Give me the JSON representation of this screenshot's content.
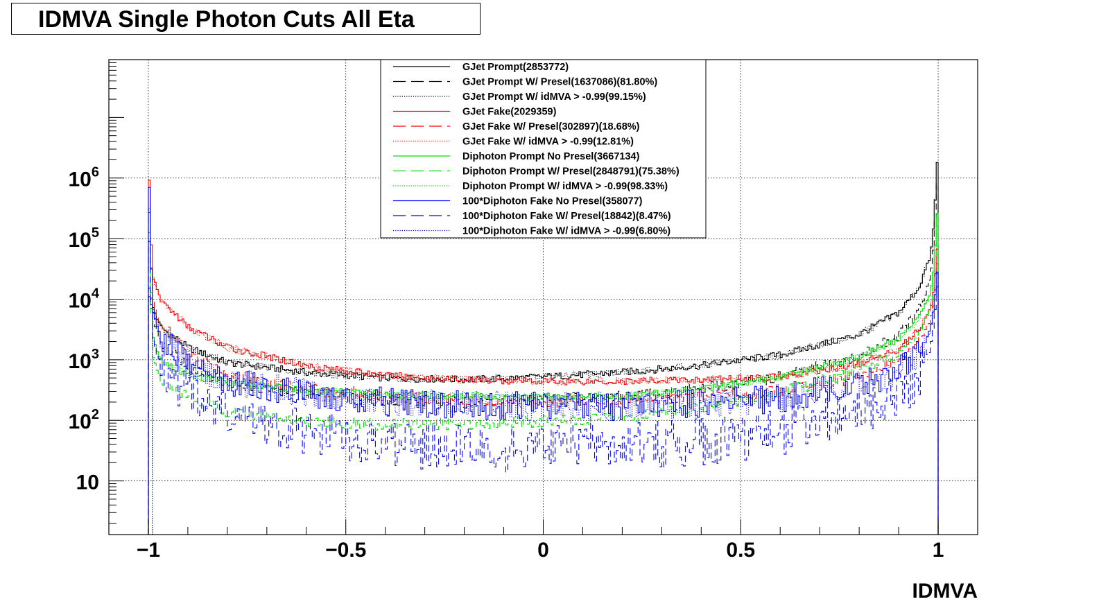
{
  "chart_data": {
    "type": "line",
    "title": "IDMVA Single Photon Cuts All Eta",
    "xlabel": "IDMVA",
    "ylabel": "",
    "xlim": [
      -1.1,
      1.1
    ],
    "ylim": [
      1.3,
      90000000
    ],
    "y_scale": "log",
    "grid": true,
    "legend_position": "top-center",
    "x_ticks": [
      {
        "value": -1,
        "label": "−1"
      },
      {
        "value": -0.5,
        "label": "−0.5"
      },
      {
        "value": 0,
        "label": "0"
      },
      {
        "value": 0.5,
        "label": "0.5"
      },
      {
        "value": 1,
        "label": "1"
      }
    ],
    "y_ticks": [
      {
        "value": 10,
        "base": "10",
        "exp": ""
      },
      {
        "value": 100,
        "base": "10",
        "exp": "2"
      },
      {
        "value": 1000,
        "base": "10",
        "exp": "3"
      },
      {
        "value": 10000,
        "base": "10",
        "exp": "4"
      },
      {
        "value": 100000,
        "base": "10",
        "exp": "5"
      },
      {
        "value": 1000000,
        "base": "10",
        "exp": "6"
      }
    ],
    "series": [
      {
        "name": "GJet Prompt(2853772)",
        "color": "#000000",
        "dash": "solid",
        "x": [
          -1.0,
          -0.99,
          -0.97,
          -0.9,
          -0.8,
          -0.6,
          -0.4,
          -0.2,
          0.0,
          0.2,
          0.4,
          0.6,
          0.8,
          0.9,
          0.95,
          0.98,
          0.99,
          1.0
        ],
        "y": [
          20000,
          8000,
          3500,
          1600,
          900,
          620,
          500,
          470,
          520,
          620,
          800,
          1200,
          2600,
          6000,
          15000,
          50000,
          200000,
          3800000
        ]
      },
      {
        "name": "GJet Prompt W/ Presel(1637086)(81.80%)",
        "color": "#000000",
        "dash": "dashed",
        "x": [
          -1.0,
          -0.99,
          -0.97,
          -0.9,
          -0.8,
          -0.6,
          -0.4,
          -0.2,
          0.0,
          0.2,
          0.4,
          0.6,
          0.8,
          0.9,
          0.95,
          0.98,
          0.99,
          1.0
        ],
        "y": [
          15000,
          5000,
          2000,
          800,
          420,
          270,
          220,
          200,
          220,
          250,
          330,
          520,
          1100,
          2600,
          6000,
          22000,
          90000,
          1600000
        ]
      },
      {
        "name": "GJet Prompt W/ idMVA > -0.99(99.15%)",
        "color": "#000000",
        "dash": "dotted",
        "x": [
          -0.99,
          -0.97,
          -0.9,
          -0.8,
          -0.6,
          -0.4,
          -0.2,
          0.0,
          0.2,
          0.4,
          0.6,
          0.8,
          0.9,
          0.95,
          0.98,
          0.99,
          1.0
        ],
        "y": [
          8000,
          3500,
          1600,
          900,
          620,
          500,
          470,
          520,
          620,
          800,
          1200,
          2600,
          6000,
          15000,
          50000,
          200000,
          3800000
        ]
      },
      {
        "name": "GJet Fake(2029359)",
        "color": "#ff0000",
        "dash": "solid",
        "x": [
          -1.0,
          -0.99,
          -0.97,
          -0.9,
          -0.8,
          -0.6,
          -0.4,
          -0.2,
          0.0,
          0.2,
          0.4,
          0.6,
          0.8,
          0.9,
          0.95,
          0.98,
          0.99,
          1.0
        ],
        "y": [
          3000000,
          25000,
          10000,
          3500,
          1600,
          800,
          550,
          470,
          440,
          440,
          470,
          520,
          850,
          1500,
          3000,
          7000,
          15000,
          120000
        ]
      },
      {
        "name": "GJet Fake W/ Presel(302897)(18.68%)",
        "color": "#ff0000",
        "dash": "dashed",
        "x": [
          -1.0,
          -0.99,
          -0.97,
          -0.9,
          -0.8,
          -0.6,
          -0.4,
          -0.2,
          0.0,
          0.2,
          0.4,
          0.6,
          0.8,
          0.9,
          0.95,
          0.98,
          0.99,
          1.0
        ],
        "y": [
          800000,
          10000,
          4000,
          1300,
          600,
          330,
          260,
          220,
          210,
          220,
          250,
          300,
          520,
          950,
          1900,
          4500,
          9000,
          60000
        ]
      },
      {
        "name": "GJet Fake W/ idMVA > -0.99(12.81%)",
        "color": "#ff0000",
        "dash": "dotted",
        "x": [
          -0.99,
          -0.97,
          -0.9,
          -0.8,
          -0.6,
          -0.4,
          -0.2,
          0.0,
          0.2,
          0.4,
          0.6,
          0.8,
          0.9,
          0.95,
          0.98,
          0.99,
          1.0
        ],
        "y": [
          25000,
          10000,
          3500,
          1600,
          800,
          550,
          470,
          440,
          440,
          470,
          520,
          850,
          1500,
          3000,
          7000,
          15000,
          120000
        ]
      },
      {
        "name": "Diphoton Prompt No Presel(3667134)",
        "color": "#00dd00",
        "dash": "solid",
        "x": [
          -1.0,
          -0.99,
          -0.97,
          -0.9,
          -0.8,
          -0.6,
          -0.4,
          -0.2,
          0.0,
          0.2,
          0.4,
          0.6,
          0.8,
          0.9,
          0.95,
          0.98,
          0.99,
          1.0
        ],
        "y": [
          1500000,
          2500,
          1000,
          560,
          420,
          310,
          270,
          250,
          240,
          250,
          330,
          520,
          1100,
          2200,
          4500,
          12000,
          40000,
          450000
        ]
      },
      {
        "name": "Diphoton Prompt W/ Presel(2848791)(75.38%)",
        "color": "#00dd00",
        "dash": "dashed",
        "x": [
          -1.0,
          -0.99,
          -0.97,
          -0.9,
          -0.8,
          -0.6,
          -0.4,
          -0.2,
          0.0,
          0.2,
          0.4,
          0.6,
          0.8,
          0.9,
          0.95,
          0.98,
          0.99,
          1.0
        ],
        "y": [
          600000,
          1200,
          500,
          250,
          140,
          95,
          85,
          88,
          95,
          110,
          160,
          290,
          650,
          1300,
          2600,
          7000,
          25000,
          350000
        ]
      },
      {
        "name": "Diphoton Prompt W/ idMVA > -0.99(98.33%)",
        "color": "#00dd00",
        "dash": "dotted",
        "x": [
          -0.99,
          -0.97,
          -0.9,
          -0.8,
          -0.6,
          -0.4,
          -0.2,
          0.0,
          0.2,
          0.4,
          0.6,
          0.8,
          0.9,
          0.95,
          0.98,
          0.99,
          1.0
        ],
        "y": [
          2500,
          1000,
          560,
          420,
          310,
          270,
          250,
          240,
          250,
          330,
          520,
          1100,
          2200,
          4500,
          12000,
          40000,
          450000
        ]
      },
      {
        "name": "100*Diphoton Fake No Presel(358077)",
        "color": "#0000ff",
        "dash": "solid",
        "x": [
          -1.0,
          -0.99,
          -0.97,
          -0.9,
          -0.8,
          -0.6,
          -0.4,
          -0.2,
          0.0,
          0.2,
          0.4,
          0.6,
          0.8,
          0.9,
          0.95,
          0.98,
          0.99,
          1.0
        ],
        "y": [
          3000000,
          7000,
          2500,
          900,
          450,
          280,
          200,
          180,
          170,
          170,
          190,
          230,
          400,
          650,
          1200,
          3000,
          8000,
          40000
        ]
      },
      {
        "name": "100*Diphoton Fake W/ Presel(18842)(8.47%)",
        "color": "#0000ff",
        "dash": "dashed",
        "x": [
          -1.0,
          -0.99,
          -0.97,
          -0.9,
          -0.8,
          -0.6,
          -0.4,
          -0.2,
          0.0,
          0.2,
          0.4,
          0.6,
          0.8,
          0.9,
          0.95,
          0.98,
          0.99,
          1.0
        ],
        "y": [
          300000,
          2500,
          900,
          280,
          120,
          60,
          40,
          35,
          35,
          40,
          45,
          60,
          130,
          260,
          550,
          1500,
          4000,
          25000
        ]
      },
      {
        "name": "100*Diphoton Fake W/ idMVA > -0.99(6.80%)",
        "color": "#0000ff",
        "dash": "dotted",
        "x": [
          -0.99,
          -0.97,
          -0.9,
          -0.8,
          -0.6,
          -0.4,
          -0.2,
          0.0,
          0.2,
          0.4,
          0.6,
          0.8,
          0.9,
          0.95,
          0.98,
          0.99,
          1.0
        ],
        "y": [
          7000,
          2500,
          900,
          450,
          280,
          200,
          180,
          170,
          170,
          190,
          230,
          400,
          650,
          1200,
          3000,
          8000,
          40000
        ]
      }
    ]
  }
}
